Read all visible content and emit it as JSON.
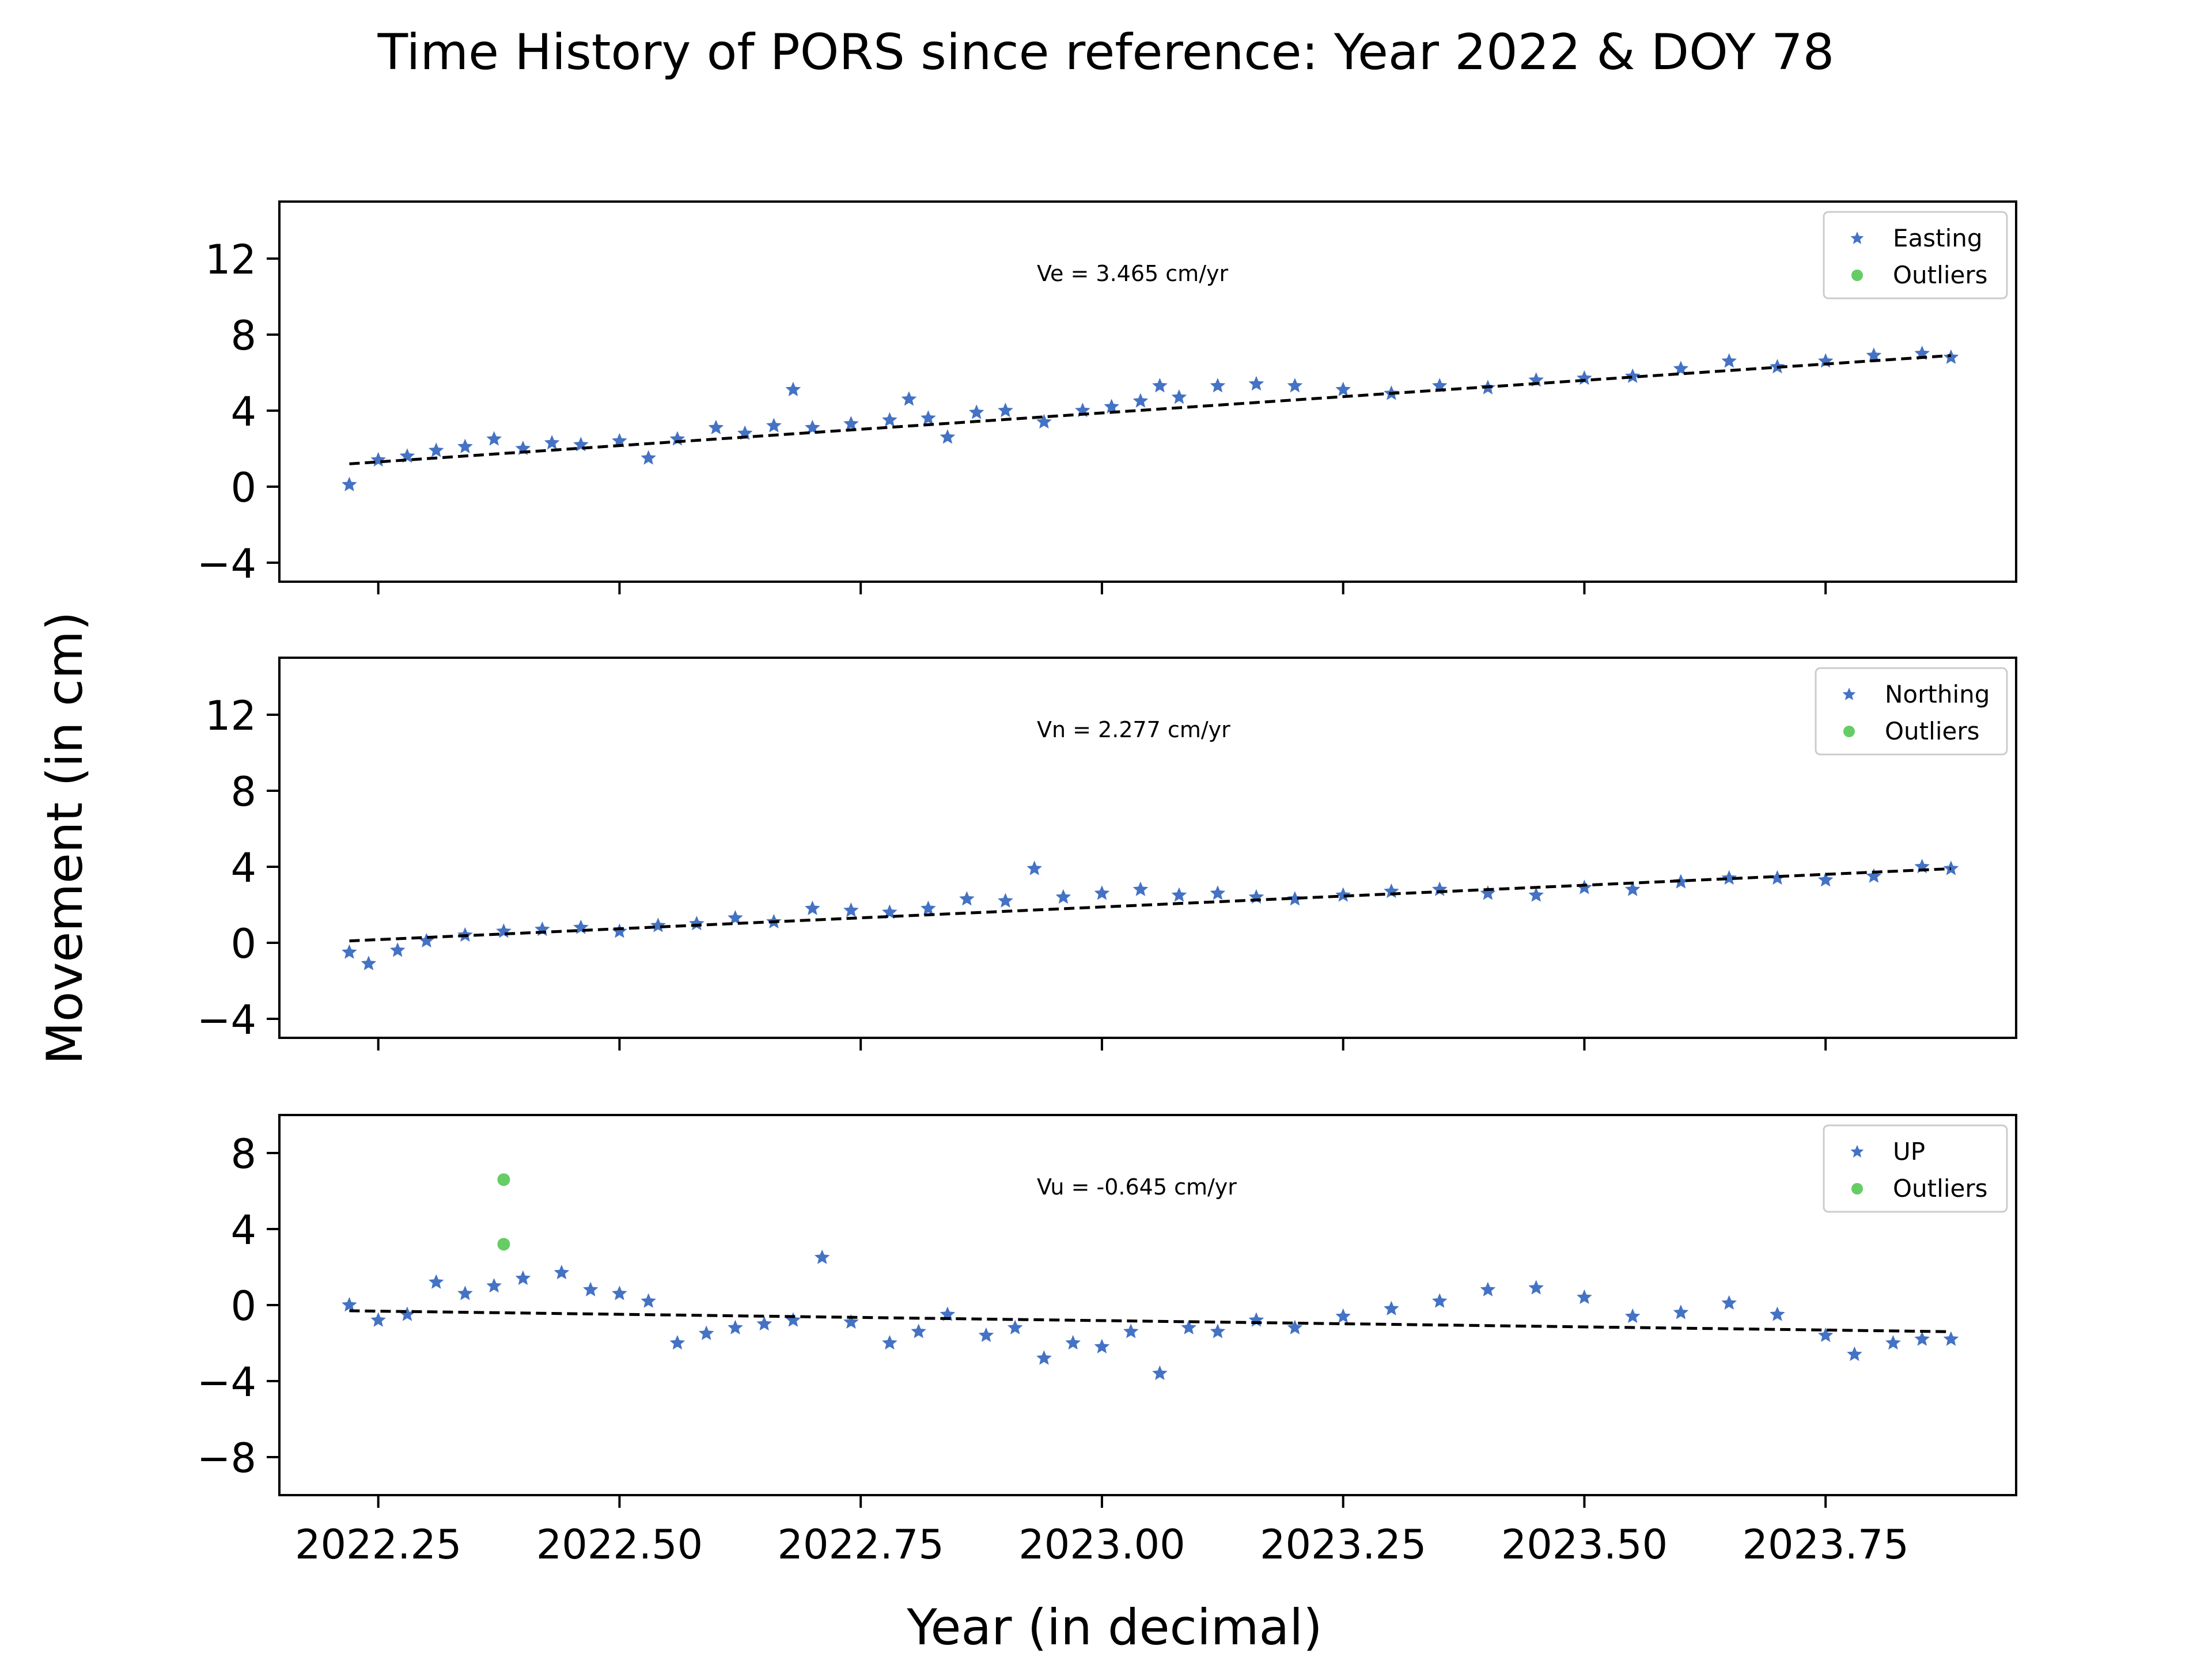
{
  "chart_data": {
    "type": "scatter",
    "title": "Time History of PORS since reference: Year 2022 & DOY 78",
    "xlabel": "Year (in decimal)",
    "ylabel": "Movement (in cm)",
    "xlim": [
      2022.1475,
      2023.9475
    ],
    "x_ticks": [
      2022.25,
      2022.5,
      2022.75,
      2023.0,
      2023.25,
      2023.5,
      2023.75
    ],
    "x_tick_labels": [
      "2022.25",
      "2022.50",
      "2022.75",
      "2023.00",
      "2023.25",
      "2023.50",
      "2023.75"
    ],
    "grid": false,
    "marker_color": "#4472c4",
    "outlier_color": "#66cc66",
    "trend_color": "#000000",
    "panels": [
      {
        "name": "Easting",
        "legend_labels": [
          "Easting",
          "Outliers"
        ],
        "legend_position": "top-right",
        "velocity_label": "Ve =  3.465 cm/yr",
        "ylim": [
          -5,
          15
        ],
        "y_ticks": [
          -4,
          0,
          4,
          8,
          12
        ],
        "y_tick_labels": [
          "−4",
          "0",
          "4",
          "8",
          "12"
        ],
        "trend": {
          "x": [
            2022.22,
            2023.88
          ],
          "y": [
            1.2,
            6.9
          ]
        },
        "x": [
          2022.22,
          2022.25,
          2022.28,
          2022.31,
          2022.34,
          2022.37,
          2022.4,
          2022.43,
          2022.46,
          2022.5,
          2022.53,
          2022.56,
          2022.6,
          2022.63,
          2022.66,
          2022.68,
          2022.7,
          2022.74,
          2022.78,
          2022.8,
          2022.82,
          2022.84,
          2022.87,
          2022.9,
          2022.94,
          2022.98,
          2023.01,
          2023.04,
          2023.06,
          2023.08,
          2023.12,
          2023.16,
          2023.2,
          2023.25,
          2023.3,
          2023.35,
          2023.4,
          2023.45,
          2023.5,
          2023.55,
          2023.6,
          2023.65,
          2023.7,
          2023.75,
          2023.8,
          2023.85,
          2023.88
        ],
        "y": [
          0.1,
          1.4,
          1.6,
          1.9,
          2.1,
          2.5,
          2.0,
          2.3,
          2.2,
          2.4,
          1.5,
          2.5,
          3.1,
          2.8,
          3.2,
          5.1,
          3.1,
          3.3,
          3.5,
          4.6,
          3.6,
          2.6,
          3.9,
          4.0,
          3.4,
          4.0,
          4.2,
          4.5,
          5.3,
          4.7,
          5.3,
          5.4,
          5.3,
          5.1,
          4.9,
          5.3,
          5.2,
          5.6,
          5.7,
          5.8,
          6.2,
          6.6,
          6.3,
          6.6,
          6.9,
          7.0,
          6.8
        ],
        "outliers": {
          "x": [],
          "y": []
        }
      },
      {
        "name": "Northing",
        "legend_labels": [
          "Northing",
          "Outliers"
        ],
        "legend_position": "top-right",
        "velocity_label": "Vn =  2.277 cm/yr",
        "ylim": [
          -5,
          15
        ],
        "y_ticks": [
          -4,
          0,
          4,
          8,
          12
        ],
        "y_tick_labels": [
          "−4",
          "0",
          "4",
          "8",
          "12"
        ],
        "trend": {
          "x": [
            2022.22,
            2023.88
          ],
          "y": [
            0.1,
            3.9
          ]
        },
        "x": [
          2022.22,
          2022.24,
          2022.27,
          2022.3,
          2022.34,
          2022.38,
          2022.42,
          2022.46,
          2022.5,
          2022.54,
          2022.58,
          2022.62,
          2022.66,
          2022.7,
          2022.74,
          2022.78,
          2022.82,
          2022.86,
          2022.9,
          2022.93,
          2022.96,
          2023.0,
          2023.04,
          2023.08,
          2023.12,
          2023.16,
          2023.2,
          2023.25,
          2023.3,
          2023.35,
          2023.4,
          2023.45,
          2023.5,
          2023.55,
          2023.6,
          2023.65,
          2023.7,
          2023.75,
          2023.8,
          2023.85,
          2023.88
        ],
        "y": [
          -0.5,
          -1.1,
          -0.4,
          0.1,
          0.4,
          0.6,
          0.7,
          0.8,
          0.6,
          0.9,
          1.0,
          1.3,
          1.1,
          1.8,
          1.7,
          1.6,
          1.8,
          2.3,
          2.2,
          3.9,
          2.4,
          2.6,
          2.8,
          2.5,
          2.6,
          2.4,
          2.3,
          2.5,
          2.7,
          2.8,
          2.6,
          2.5,
          2.9,
          2.8,
          3.2,
          3.4,
          3.4,
          3.3,
          3.5,
          4.0,
          3.9
        ],
        "outliers": {
          "x": [],
          "y": []
        }
      },
      {
        "name": "UP",
        "legend_labels": [
          "UP",
          "Outliers"
        ],
        "legend_position": "top-right",
        "velocity_label": "Vu = -0.645 cm/yr",
        "ylim": [
          -10,
          10
        ],
        "y_ticks": [
          -8,
          -4,
          0,
          4,
          8
        ],
        "y_tick_labels": [
          "−8",
          "−4",
          "0",
          "4",
          "8"
        ],
        "trend": {
          "x": [
            2022.22,
            2023.88
          ],
          "y": [
            -0.3,
            -1.4
          ]
        },
        "x": [
          2022.22,
          2022.25,
          2022.28,
          2022.31,
          2022.34,
          2022.37,
          2022.4,
          2022.44,
          2022.47,
          2022.5,
          2022.53,
          2022.56,
          2022.59,
          2022.62,
          2022.65,
          2022.68,
          2022.71,
          2022.74,
          2022.78,
          2022.81,
          2022.84,
          2022.88,
          2022.91,
          2022.94,
          2022.97,
          2023.0,
          2023.03,
          2023.06,
          2023.09,
          2023.12,
          2023.16,
          2023.2,
          2023.25,
          2023.3,
          2023.35,
          2023.4,
          2023.45,
          2023.5,
          2023.55,
          2023.6,
          2023.65,
          2023.7,
          2023.75,
          2023.78,
          2023.82,
          2023.85,
          2023.88
        ],
        "y": [
          0.0,
          -0.8,
          -0.5,
          1.2,
          0.6,
          1.0,
          1.4,
          1.7,
          0.8,
          0.6,
          0.2,
          -2.0,
          -1.5,
          -1.2,
          -1.0,
          -0.8,
          2.5,
          -0.9,
          -2.0,
          -1.4,
          -0.5,
          -1.6,
          -1.2,
          -2.8,
          -2.0,
          -2.2,
          -1.4,
          -3.6,
          -1.2,
          -1.4,
          -0.8,
          -1.2,
          -0.6,
          -0.2,
          0.2,
          0.8,
          0.9,
          0.4,
          -0.6,
          -0.4,
          0.1,
          -0.5,
          -1.6,
          -2.6,
          -2.0,
          -1.8,
          -1.8
        ],
        "outliers": {
          "x": [
            2022.38,
            2022.38
          ],
          "y": [
            6.6,
            3.2
          ]
        }
      }
    ]
  }
}
